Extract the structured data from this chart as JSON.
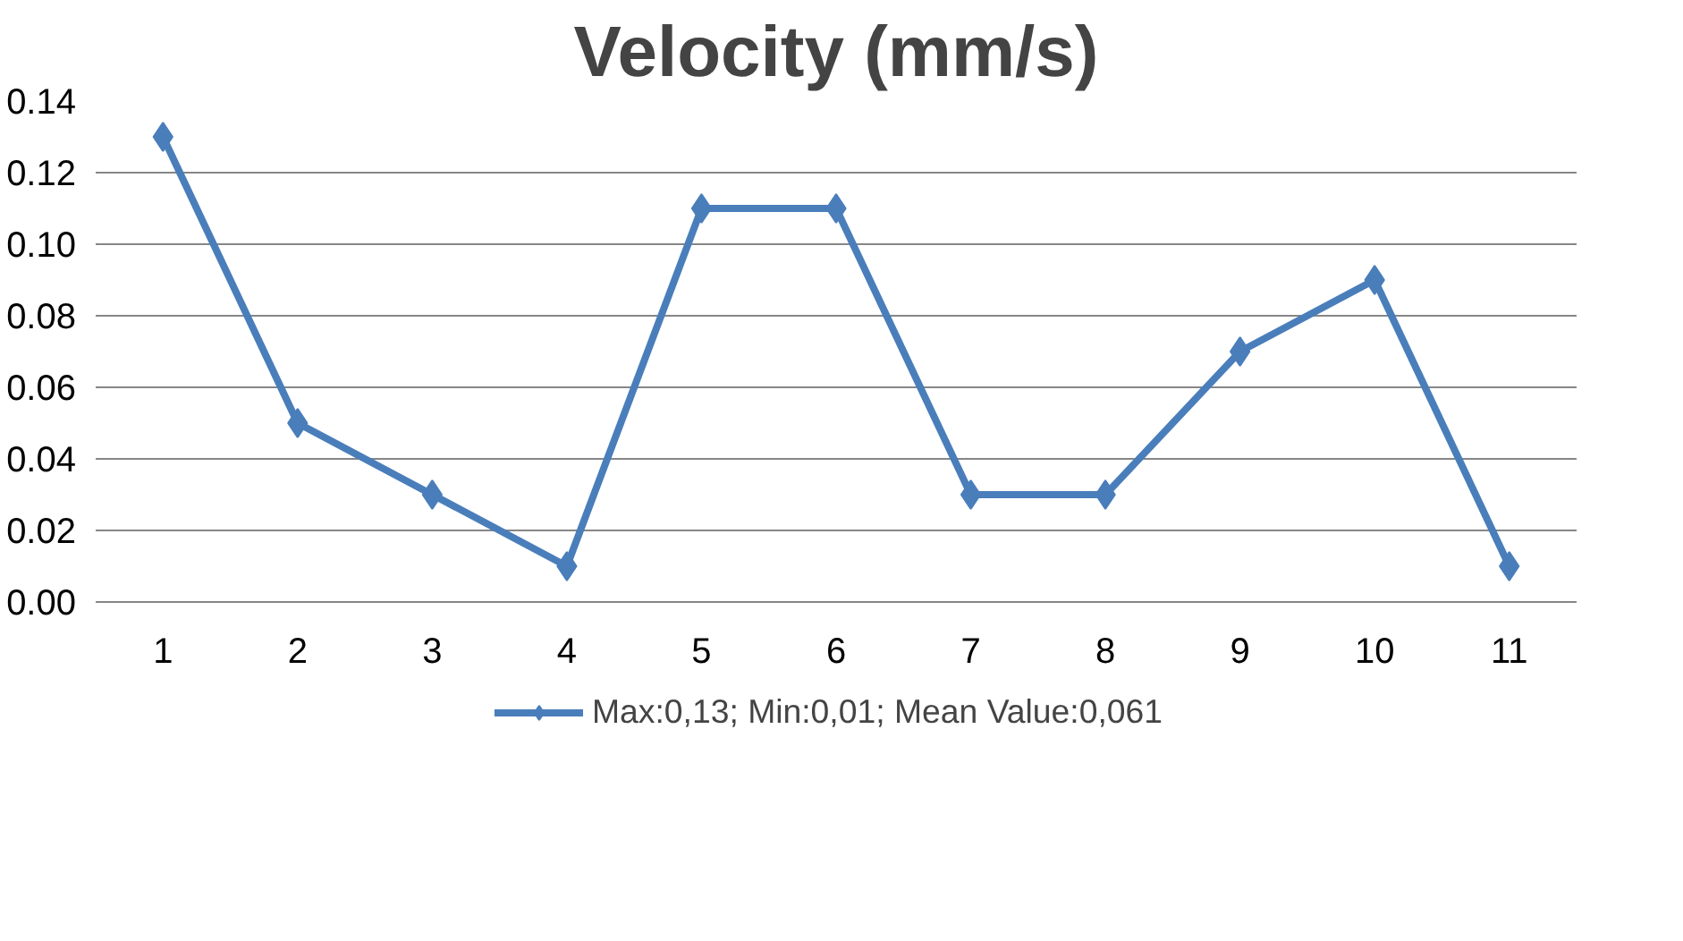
{
  "chart_data": {
    "type": "line",
    "title": "Velocity (mm/s)",
    "categories": [
      "1",
      "2",
      "3",
      "4",
      "5",
      "6",
      "7",
      "8",
      "9",
      "10",
      "11"
    ],
    "series": [
      {
        "name": "Max:0,13; Min:0,01; Mean Value:0,061",
        "color": "#4a7ebb",
        "values": [
          0.13,
          0.05,
          0.03,
          0.01,
          0.11,
          0.11,
          0.03,
          0.03,
          0.07,
          0.09,
          0.01
        ]
      }
    ],
    "ylim": [
      0,
      0.14
    ],
    "yticks": [
      {
        "value": 0,
        "label": "0.00"
      },
      {
        "value": 0.02,
        "label": "0.02"
      },
      {
        "value": 0.04,
        "label": "0.04"
      },
      {
        "value": 0.06,
        "label": "0.06"
      },
      {
        "value": 0.08,
        "label": "0.08"
      },
      {
        "value": 0.1,
        "label": "0.10"
      },
      {
        "value": 0.12,
        "label": "0.12"
      },
      {
        "value": 0.14,
        "label": "0.14"
      }
    ],
    "grid": "y",
    "legend": "bottom",
    "marker": "diamond",
    "line_style": "solid"
  }
}
